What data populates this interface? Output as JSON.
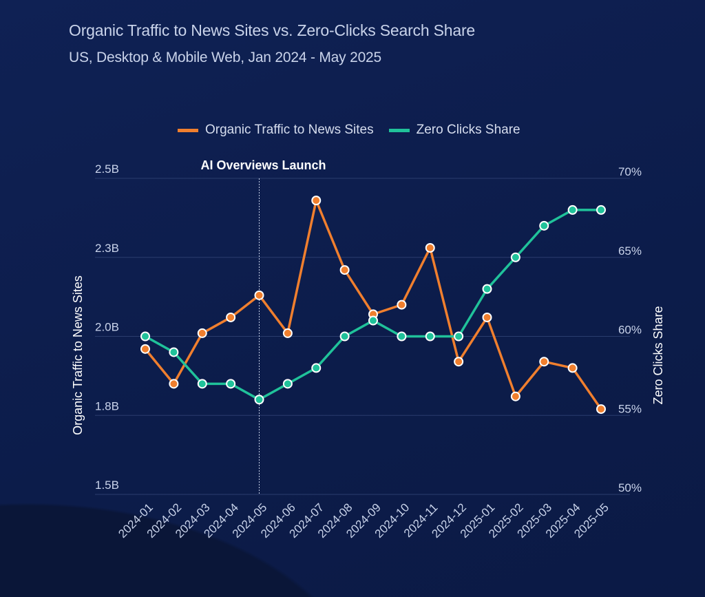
{
  "chart_data": {
    "type": "line",
    "title": "Organic Traffic to News Sites vs. Zero-Clicks Search Share",
    "subtitle": "US, Desktop & Mobile Web, Jan 2024 - May 2025",
    "categories": [
      "2024-01",
      "2024-02",
      "2024-03",
      "2024-04",
      "2024-05",
      "2024-06",
      "2024-07",
      "2024-08",
      "2024-09",
      "2024-10",
      "2024-11",
      "2024-12",
      "2025-01",
      "2025-02",
      "2025-03",
      "2025-04",
      "2025-05"
    ],
    "series": [
      {
        "name": "Organic Traffic to News Sites",
        "axis": "left",
        "color": "#f07f2e",
        "values": [
          1.96,
          1.85,
          2.01,
          2.06,
          2.13,
          2.01,
          2.43,
          2.21,
          2.07,
          2.1,
          2.28,
          1.92,
          2.06,
          1.81,
          1.92,
          1.9,
          1.77
        ]
      },
      {
        "name": "Zero Clicks Share",
        "axis": "right",
        "color": "#20c29a",
        "values": [
          60,
          59,
          57,
          57,
          56,
          57,
          58,
          60,
          61,
          60,
          60,
          60,
          63,
          65,
          67,
          68,
          68
        ]
      }
    ],
    "ylabel": "Organic Traffic to News Sites",
    "ylim": [
      1.5,
      2.5
    ],
    "yticks": [
      "1.5B",
      "1.8B",
      "2.0B",
      "2.3B",
      "2.5B"
    ],
    "y2label": "Zero Clicks Share",
    "y2lim": [
      50,
      70
    ],
    "y2ticks": [
      "50%",
      "55%",
      "60%",
      "65%",
      "70%"
    ],
    "annotation": {
      "label": "AI Overviews Launch",
      "at": "2024-05"
    },
    "grid": true,
    "legend": "top"
  }
}
